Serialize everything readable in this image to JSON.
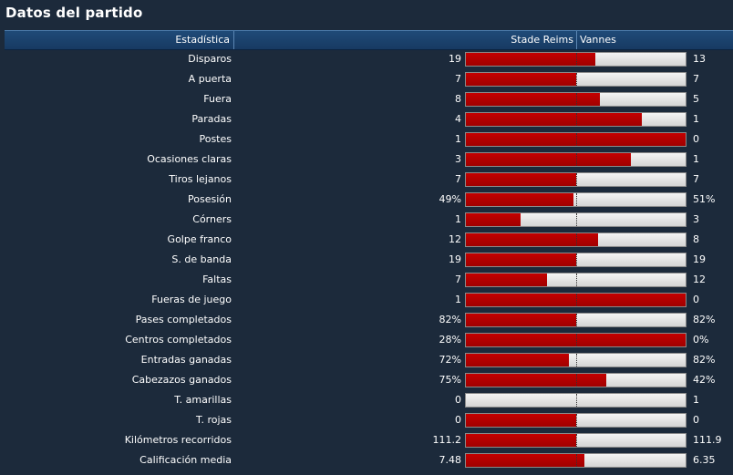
{
  "title": "Datos del partido",
  "header": {
    "stat": "Estadística",
    "home": "Stade Reims",
    "away": "Vannes"
  },
  "colors": {
    "home_fill": "#b00000",
    "away_fill": "#e2e2e2",
    "background": "#1c2a3b",
    "header": "#1f4a78"
  },
  "stats": [
    {
      "label": "Disparos",
      "home": "19",
      "away": "13",
      "home_share": 0.59
    },
    {
      "label": "A puerta",
      "home": "7",
      "away": "7",
      "home_share": 0.5
    },
    {
      "label": "Fuera",
      "home": "8",
      "away": "5",
      "home_share": 0.61
    },
    {
      "label": "Paradas",
      "home": "4",
      "away": "1",
      "home_share": 0.8
    },
    {
      "label": "Postes",
      "home": "1",
      "away": "0",
      "home_share": 1.0
    },
    {
      "label": "Ocasiones claras",
      "home": "3",
      "away": "1",
      "home_share": 0.75
    },
    {
      "label": "Tiros lejanos",
      "home": "7",
      "away": "7",
      "home_share": 0.5
    },
    {
      "label": "Posesión",
      "home": "49%",
      "away": "51%",
      "home_share": 0.49
    },
    {
      "label": "Córners",
      "home": "1",
      "away": "3",
      "home_share": 0.25
    },
    {
      "label": "Golpe franco",
      "home": "12",
      "away": "8",
      "home_share": 0.6
    },
    {
      "label": "S. de banda",
      "home": "19",
      "away": "19",
      "home_share": 0.5
    },
    {
      "label": "Faltas",
      "home": "7",
      "away": "12",
      "home_share": 0.37
    },
    {
      "label": "Fueras de juego",
      "home": "1",
      "away": "0",
      "home_share": 1.0
    },
    {
      "label": "Pases completados",
      "home": "82%",
      "away": "82%",
      "home_share": 0.5
    },
    {
      "label": "Centros completados",
      "home": "28%",
      "away": "0%",
      "home_share": 1.0
    },
    {
      "label": "Entradas ganadas",
      "home": "72%",
      "away": "82%",
      "home_share": 0.47
    },
    {
      "label": "Cabezazos ganados",
      "home": "75%",
      "away": "42%",
      "home_share": 0.64
    },
    {
      "label": "T. amarillas",
      "home": "0",
      "away": "1",
      "home_share": 0.0
    },
    {
      "label": "T. rojas",
      "home": "0",
      "away": "0",
      "home_share": 0.5
    },
    {
      "label": "Kilómetros recorridos",
      "home": "111.2",
      "away": "111.9",
      "home_share": 0.5
    },
    {
      "label": "Calificación media",
      "home": "7.48",
      "away": "6.35",
      "home_share": 0.54
    }
  ]
}
